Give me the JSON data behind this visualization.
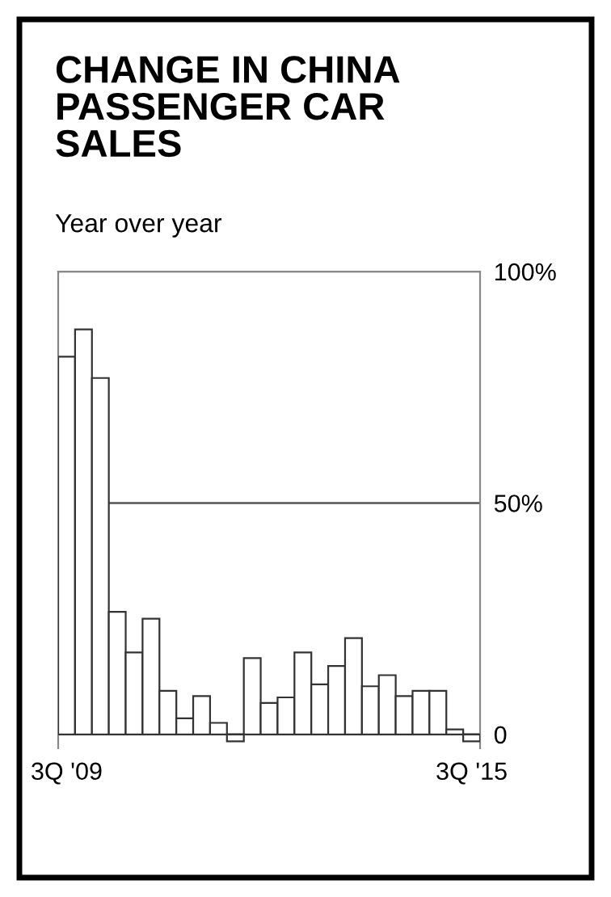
{
  "chart_data": {
    "type": "bar",
    "title": "CHANGE IN CHINA\nPASSENGER CAR\nSALES",
    "subtitle": "Year over year",
    "categories": [
      "3Q '09",
      null,
      null,
      null,
      null,
      null,
      null,
      null,
      null,
      null,
      null,
      null,
      null,
      null,
      null,
      null,
      null,
      null,
      null,
      null,
      null,
      null,
      null,
      null,
      "3Q '15"
    ],
    "values": [
      81.6,
      87.5,
      77,
      26.5,
      17.7,
      25,
      9.4,
      3.5,
      8.3,
      2.5,
      -1.5,
      16.5,
      6.8,
      8,
      17.7,
      10.8,
      14.8,
      20.8,
      10.4,
      12.8,
      8.3,
      9.4,
      9.4,
      1.1,
      -1.5
    ],
    "color": "#ffffff",
    "ylim": [
      -3,
      100
    ],
    "yticks": [
      {
        "value": 0,
        "label": "0"
      },
      {
        "value": 50,
        "label": "50%"
      },
      {
        "value": 100,
        "label": "100%"
      }
    ],
    "grid": "y",
    "legend": false
  }
}
